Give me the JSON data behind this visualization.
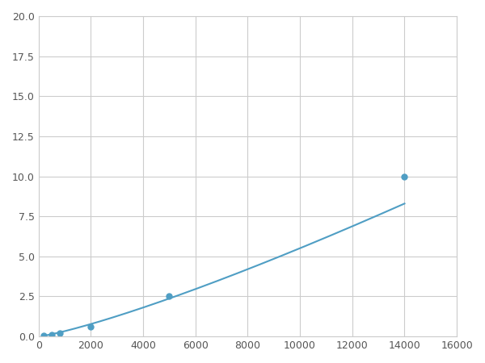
{
  "x": [
    200,
    500,
    800,
    2000,
    5000,
    14000
  ],
  "y": [
    0.07,
    0.12,
    0.2,
    0.62,
    2.55,
    10.0
  ],
  "line_color": "#4f9ec4",
  "marker_color": "#4f9ec4",
  "marker_size": 5,
  "xlim": [
    0,
    16000
  ],
  "ylim": [
    0,
    20
  ],
  "xticks": [
    0,
    2000,
    4000,
    6000,
    8000,
    10000,
    12000,
    14000,
    16000
  ],
  "yticks": [
    0.0,
    2.5,
    5.0,
    7.5,
    10.0,
    12.5,
    15.0,
    17.5,
    20.0
  ],
  "grid_color": "#cccccc",
  "background_color": "#ffffff",
  "figsize": [
    6.0,
    4.5
  ],
  "dpi": 100
}
